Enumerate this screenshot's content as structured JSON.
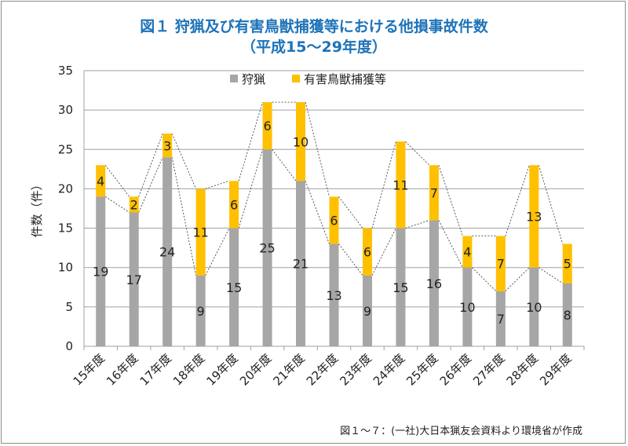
{
  "chart_data": {
    "type": "bar",
    "stacked": true,
    "title": "図１  狩猟及び有害鳥獣捕獲等における他損事故件数",
    "subtitle": "（平成15～29年度）",
    "ylabel": "件数（件）",
    "xlabel": "",
    "ylim": [
      0,
      35
    ],
    "yticks": [
      0,
      5,
      10,
      15,
      20,
      25,
      30,
      35
    ],
    "grid": true,
    "legend_position": "top",
    "categories": [
      "15年度",
      "16年度",
      "17年度",
      "18年度",
      "19年度",
      "20年度",
      "21年度",
      "22年度",
      "23年度",
      "24年度",
      "25年度",
      "26年度",
      "27年度",
      "28年度",
      "29年度"
    ],
    "series": [
      {
        "name": "狩猟",
        "color": "#a6a6a6",
        "values": [
          19,
          17,
          24,
          9,
          15,
          25,
          21,
          13,
          9,
          15,
          16,
          10,
          7,
          10,
          8
        ]
      },
      {
        "name": "有害鳥獣捕獲等",
        "color": "#ffc000",
        "values": [
          4,
          2,
          3,
          11,
          6,
          6,
          10,
          6,
          6,
          11,
          7,
          4,
          7,
          13,
          5
        ]
      }
    ],
    "series_lines": "dashed",
    "source": "図１～７：(一社)大日本猟友会資料より環境省が作成"
  }
}
